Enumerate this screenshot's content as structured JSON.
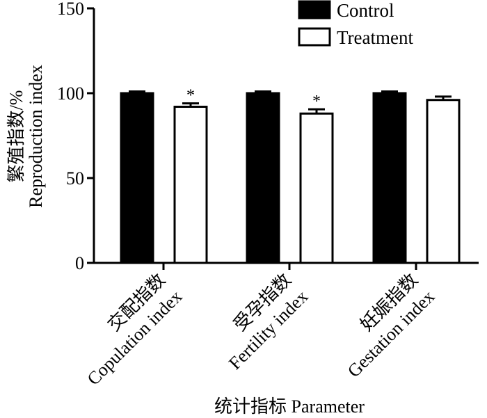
{
  "chart_data": {
    "type": "bar",
    "categories": [
      [
        "交配指数",
        "Copulation index"
      ],
      [
        "受孕指数",
        "Fertility index"
      ],
      [
        "妊娠指数",
        "Gestation index"
      ]
    ],
    "series": [
      {
        "name": "Control",
        "values": [
          100,
          100,
          100
        ],
        "errors": [
          1,
          1,
          1
        ],
        "color": "#000000",
        "significance": [
          "",
          "",
          ""
        ]
      },
      {
        "name": "Treatment",
        "values": [
          92,
          88,
          96
        ],
        "errors": [
          2,
          2.5,
          2
        ],
        "color": "#ffffff",
        "significance": [
          "*",
          "*",
          ""
        ]
      }
    ],
    "ylabel": [
      "繁殖指数/%",
      "Reproduction index"
    ],
    "xlabel": "统计指标 Parameter",
    "ylim": [
      0,
      150
    ],
    "yticks": [
      0,
      50,
      100,
      150
    ],
    "legend": "top-right",
    "grid": false
  }
}
